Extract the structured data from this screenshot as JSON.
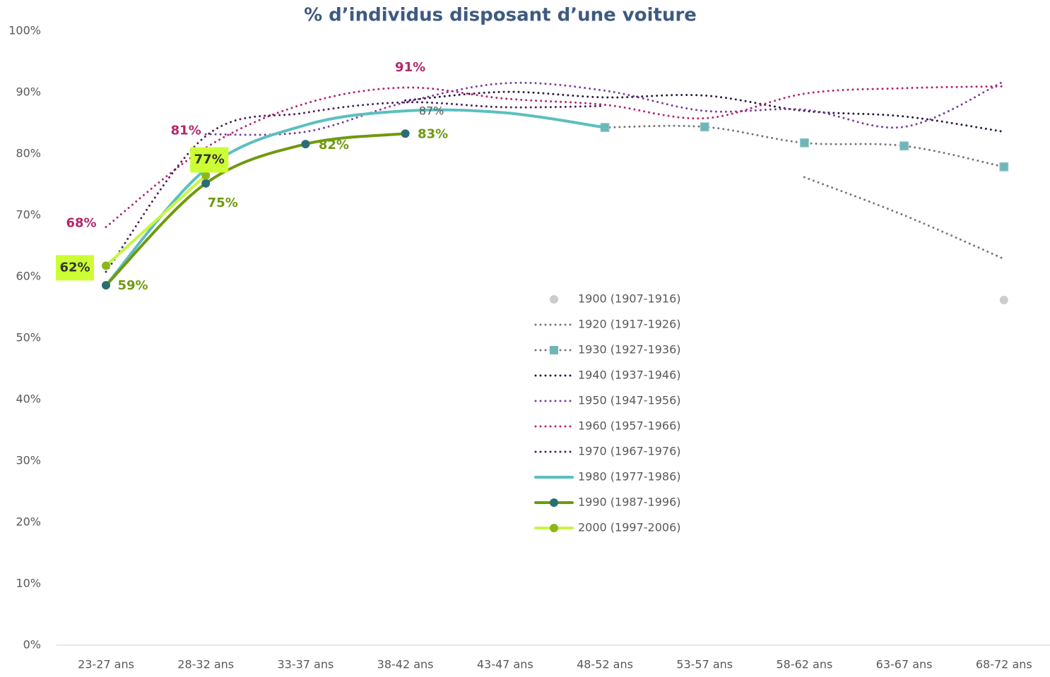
{
  "chart_data": {
    "type": "line",
    "title": "% d’individus disposant d’une voiture",
    "categories": [
      "23-27 ans",
      "28-32 ans",
      "33-37 ans",
      "38-42 ans",
      "43-47 ans",
      "48-52 ans",
      "53-57 ans",
      "58-62 ans",
      "63-67 ans",
      "68-72 ans"
    ],
    "ylim": [
      0,
      100
    ],
    "yticks": [
      {
        "value": 0,
        "label": "0%"
      },
      {
        "value": 10,
        "label": "10%"
      },
      {
        "value": 20,
        "label": "20%"
      },
      {
        "value": 30,
        "label": "30%"
      },
      {
        "value": 40,
        "label": "40%"
      },
      {
        "value": 50,
        "label": "50%"
      },
      {
        "value": 60,
        "label": "60%"
      },
      {
        "value": 70,
        "label": "70%"
      },
      {
        "value": 80,
        "label": "80%"
      },
      {
        "value": 90,
        "label": "90%"
      },
      {
        "value": 100,
        "label": "100%"
      }
    ],
    "legend": "center",
    "series": [
      {
        "name": "1900 (1907-1916)",
        "color": "#cccccc",
        "line_style": "none",
        "marker": "circle",
        "marker_color": "#cccccc",
        "values": [
          null,
          null,
          null,
          null,
          null,
          null,
          null,
          null,
          null,
          56.2
        ]
      },
      {
        "name": "1920 (1917-1926)",
        "color": "#777777",
        "line_style": "dotted",
        "marker": null,
        "values": [
          null,
          null,
          null,
          null,
          null,
          null,
          null,
          76.2,
          70.0,
          62.9
        ]
      },
      {
        "name": "1930 (1927-1936)",
        "color": "#777777",
        "line_style": "dotted",
        "marker": "square",
        "marker_color": "#70b6b8",
        "values": [
          null,
          null,
          null,
          null,
          null,
          84.3,
          84.4,
          81.8,
          81.3,
          77.9
        ]
      },
      {
        "name": "1940 (1937-1946)",
        "color": "#2b1a3d",
        "line_style": "dotted",
        "marker": null,
        "values": [
          null,
          null,
          null,
          88.7,
          90.1,
          89.2,
          89.5,
          87.0,
          86.1,
          83.6
        ]
      },
      {
        "name": "1950 (1947-1956)",
        "color": "#7b3fa0",
        "line_style": "dotted",
        "marker": null,
        "values": [
          null,
          83.2,
          83.6,
          88.4,
          91.5,
          90.3,
          87.0,
          87.2,
          84.4,
          91.8
        ]
      },
      {
        "name": "1960 (1957-1966)",
        "color": "#b5256e",
        "line_style": "dotted",
        "marker": null,
        "values": [
          68.1,
          81.0,
          88.2,
          90.8,
          89.0,
          88.0,
          85.8,
          89.8,
          90.7,
          91.0
        ],
        "value_labels": [
          "68%",
          "81%",
          null,
          "91%",
          null,
          null,
          null,
          null,
          null,
          null
        ]
      },
      {
        "name": "1970 (1967-1976)",
        "color": "#4a2060",
        "line_style": "dotted",
        "marker": null,
        "values": [
          60.8,
          82.9,
          86.7,
          88.4,
          87.6,
          87.8,
          null,
          null,
          null,
          null
        ]
      },
      {
        "name": "1980 (1977-1986)",
        "color": "#5bbfc0",
        "line_style": "solid",
        "marker": null,
        "values": [
          58.6,
          77.5,
          84.7,
          87.0,
          86.7,
          84.3,
          null,
          null,
          null,
          null
        ],
        "value_labels": [
          null,
          null,
          null,
          "87%",
          null,
          null,
          null,
          null,
          null,
          null
        ]
      },
      {
        "name": "1990 (1987-1996)",
        "color": "#6f9a0e",
        "line_style": "solid",
        "marker": "circle",
        "marker_color": "#2a6e75",
        "values": [
          58.6,
          75.2,
          81.6,
          83.3,
          null,
          null,
          null,
          null,
          null,
          null
        ],
        "value_labels": [
          "59%",
          "75%",
          "82%",
          "83%",
          null,
          null,
          null,
          null,
          null,
          null
        ]
      },
      {
        "name": "2000 (1997-2006)",
        "color": "#c8f542",
        "line_style": "solid",
        "marker": "circle",
        "marker_color": "#8ab81a",
        "values": [
          61.8,
          76.5,
          null,
          null,
          null,
          null,
          null,
          null,
          null,
          null
        ],
        "value_labels": [
          "62%",
          "77%",
          null,
          null,
          null,
          null,
          null,
          null,
          null,
          null
        ]
      }
    ]
  }
}
